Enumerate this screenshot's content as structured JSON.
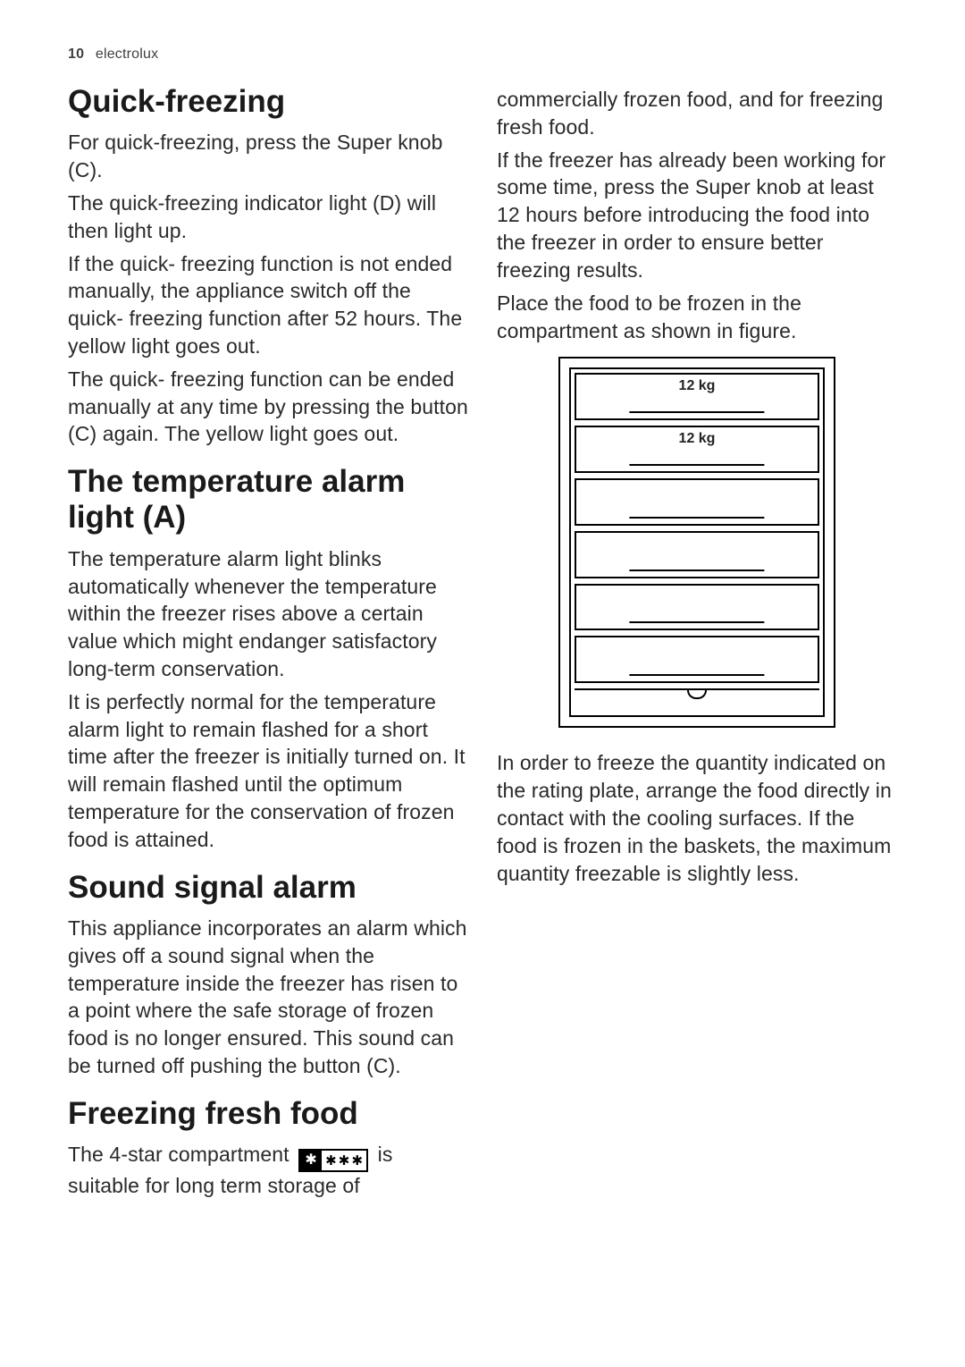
{
  "header": {
    "page_number": "10",
    "brand": "electrolux"
  },
  "sections": {
    "quick_freezing": {
      "title": "Quick-freezing",
      "p1": "For quick-freezing, press the Super knob (C).",
      "p2": "The quick-freezing indicator light (D) will then light up.",
      "p3": "If the quick- freezing function is not ended manually, the appliance switch off the quick- freezing function after 52 hours. The yellow light goes out.",
      "p4": "The quick- freezing function can be ended manually at any time by pressing the button (C) again. The yellow light goes out."
    },
    "temp_alarm": {
      "title": "The temperature alarm light (A)",
      "p1": "The temperature alarm light blinks automatically whenever the temperature within the freezer rises above a certain value which might endanger satisfactory long-term conservation.",
      "p2": "It is perfectly normal for the temperature alarm light to remain flashed for a short time after the freezer is initially turned on. It will remain flashed until the optimum temperature for the conservation of frozen food is attained."
    },
    "sound_alarm": {
      "title": "Sound signal alarm",
      "p1": "This appliance incorporates an alarm which gives off a sound signal when the temperature inside the freezer has risen to a point where the safe storage of frozen food is no longer ensured. This sound can be turned off pushing the button (C)."
    },
    "freezing_food": {
      "title": "Freezing fresh food",
      "p1a": "The 4-star compartment ",
      "p1b": " is suitable for long term storage of",
      "p2": "commercially frozen food, and for freezing fresh food.",
      "p3": "If the freezer has already been working for some time, press the Super knob at least 12 hours before introducing the food into the freezer in order to ensure better freezing results.",
      "p4": "Place the food to be frozen in the compartment as shown in figure.",
      "p5": "In order to freeze the quantity indicated on the rating plate, arrange the food directly in contact with the cooling surfaces. If the food is frozen in the baskets, the maximum quantity freezable is slightly less."
    }
  },
  "diagram": {
    "type": "infographic",
    "shelf_count": 6,
    "labeled": [
      {
        "index": 0,
        "label": "12 kg"
      },
      {
        "index": 1,
        "label": "12 kg"
      }
    ],
    "stroke_color": "#000000",
    "background_color": "#ffffff",
    "label_fontsize_pt": 12,
    "label_fontweight": 700
  },
  "four_star_icon": {
    "main_glyph": "✱",
    "rest_glyph": "✱",
    "rest_count": 3,
    "main_bg": "#000000",
    "main_fg": "#ffffff",
    "border_color": "#000000"
  },
  "style": {
    "body_fontsize_pt": 17,
    "body_lineheight": 1.34,
    "heading_fontsize_pt": 26,
    "heading_fontweight": 700,
    "text_color": "#2a2a2a",
    "heading_color": "#1a1a1a",
    "background_color": "#ffffff"
  }
}
